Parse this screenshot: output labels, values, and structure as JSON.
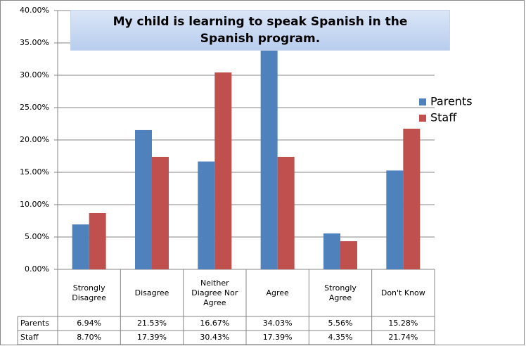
{
  "chart_data": {
    "type": "bar",
    "title": "My child is learning to speak Spanish in the Spanish program.",
    "categories": [
      "Strongly Disagree",
      "Disagree",
      "Neither Diagree Nor Agree",
      "Agree",
      "Strongly Agree",
      "Don't Know"
    ],
    "series": [
      {
        "name": "Parents",
        "color": "#4f81bd",
        "values": [
          6.94,
          21.53,
          16.67,
          34.03,
          5.56,
          15.28
        ],
        "value_labels": [
          "6.94%",
          "21.53%",
          "16.67%",
          "34.03%",
          "5.56%",
          "15.28%"
        ]
      },
      {
        "name": "Staff",
        "color": "#c0504d",
        "values": [
          8.7,
          17.39,
          30.43,
          17.39,
          4.35,
          21.74
        ],
        "value_labels": [
          "8.70%",
          "17.39%",
          "30.43%",
          "17.39%",
          "4.35%",
          "21.74%"
        ]
      }
    ],
    "ylim": [
      0,
      40
    ],
    "yticks": [
      {
        "value": 0,
        "label": "0.00%"
      },
      {
        "value": 5,
        "label": "5.00%"
      },
      {
        "value": 10,
        "label": "10.00%"
      },
      {
        "value": 15,
        "label": "15.00%"
      },
      {
        "value": 20,
        "label": "20.00%"
      },
      {
        "value": 25,
        "label": "25.00%"
      },
      {
        "value": 30,
        "label": "30.00%"
      },
      {
        "value": 35,
        "label": "35.00%"
      },
      {
        "value": 40,
        "label": "40.00%"
      }
    ],
    "grid": true,
    "legend": "right"
  }
}
